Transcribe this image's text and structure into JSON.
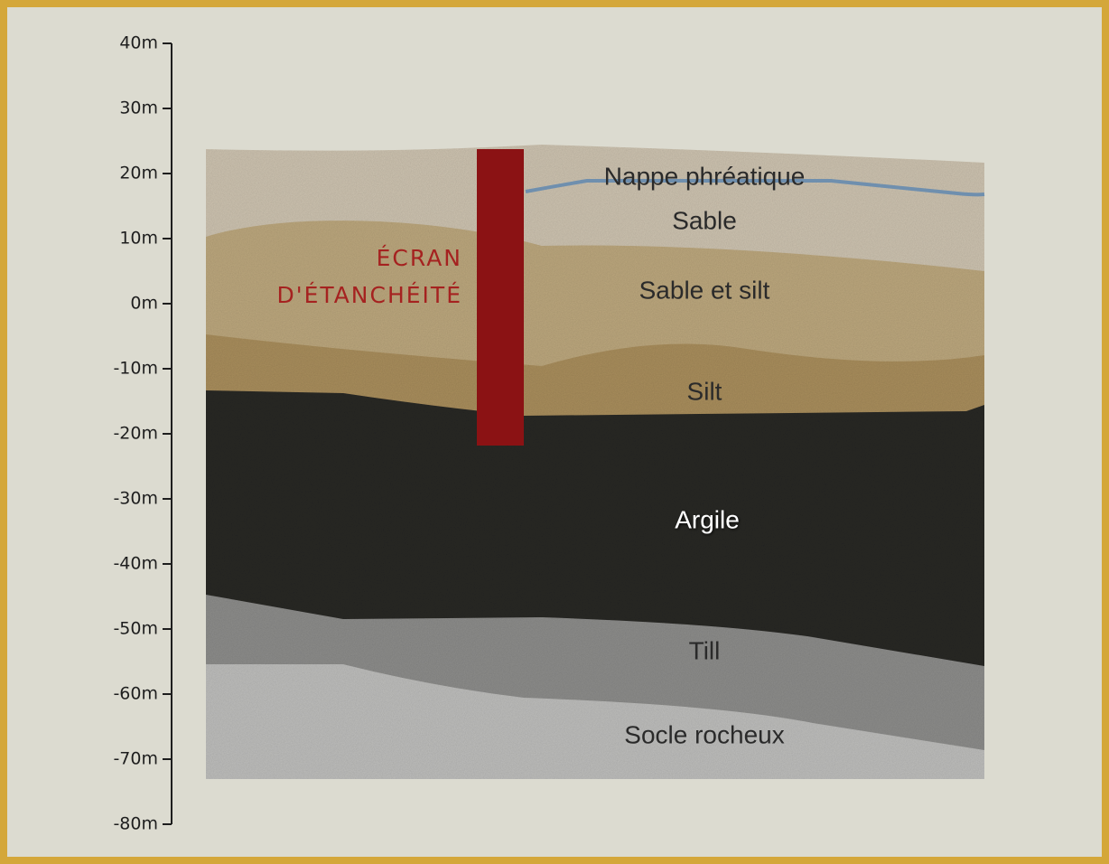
{
  "axis": {
    "ticks": [
      "40m",
      "30m",
      "20m",
      "10m",
      "0m",
      "-10m",
      "-20m",
      "-30m",
      "-40m",
      "-50m",
      "-60m",
      "-70m",
      "-80m"
    ]
  },
  "water_table": "Nappe phréatique",
  "layers": [
    "Sable",
    "Sable et silt",
    "Silt",
    "Argile",
    "Till",
    "Socle rocheux"
  ],
  "wall": {
    "lines": [
      "ÉCRAN",
      "D'ÉTANCHÉITÉ"
    ]
  }
}
